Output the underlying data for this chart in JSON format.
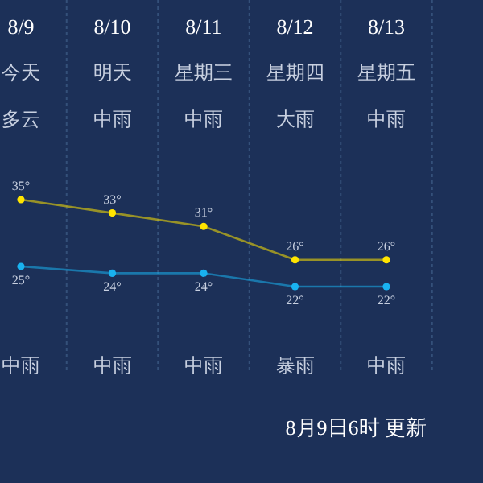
{
  "chart_data": {
    "type": "line",
    "categories": [
      "8/9",
      "8/10",
      "8/11",
      "8/12",
      "8/13"
    ],
    "series": [
      {
        "color": "#ffe400",
        "values": [
          35,
          33,
          31,
          26,
          26
        ],
        "value_labels": [
          "35°",
          "33°",
          "31°",
          "26°",
          "26°"
        ]
      },
      {
        "color": "#19b2f0",
        "values": [
          25,
          24,
          24,
          22,
          22
        ],
        "value_labels": [
          "25°",
          "24°",
          "24°",
          "22°",
          "22°"
        ]
      }
    ],
    "marker": "circle",
    "grid": "x",
    "annotations": [
      "今天",
      "明天",
      "星期三",
      "星期四",
      "星期五",
      "多云",
      "中雨",
      "中雨",
      "大雨",
      "中雨",
      "中雨",
      "中雨",
      "中雨",
      "暴雨",
      "中雨",
      "8月9日6时 更新"
    ]
  }
}
